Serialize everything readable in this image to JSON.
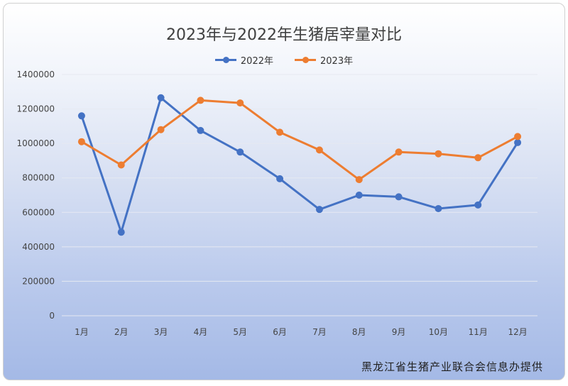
{
  "colors": {
    "series_2022": "#4472C4",
    "series_2023": "#ED7D31",
    "grid": "#e6e9f2"
  },
  "footer": {
    "source": "黑龙江省生猪产业联合会信息办提供"
  },
  "chart_data": {
    "type": "line",
    "title": "2023年与2022年生猪居宰量对比",
    "xlabel": "",
    "ylabel": "",
    "categories": [
      "1月",
      "2月",
      "3月",
      "4月",
      "5月",
      "6月",
      "7月",
      "8月",
      "9月",
      "10月",
      "11月",
      "12月"
    ],
    "y_ticks": [
      0,
      200000,
      400000,
      600000,
      800000,
      1000000,
      1200000,
      1400000
    ],
    "ylim": [
      0,
      1400000
    ],
    "grid": true,
    "legend_position": "top",
    "series": [
      {
        "name": "2022年",
        "color_key": "series_2022",
        "values": [
          1160000,
          485000,
          1265000,
          1075000,
          950000,
          795000,
          617000,
          700000,
          690000,
          622000,
          643000,
          1005000
        ]
      },
      {
        "name": "2023年",
        "color_key": "series_2023",
        "values": [
          1010000,
          875000,
          1080000,
          1250000,
          1235000,
          1065000,
          962000,
          790000,
          950000,
          940000,
          917000,
          1040000
        ]
      }
    ]
  }
}
